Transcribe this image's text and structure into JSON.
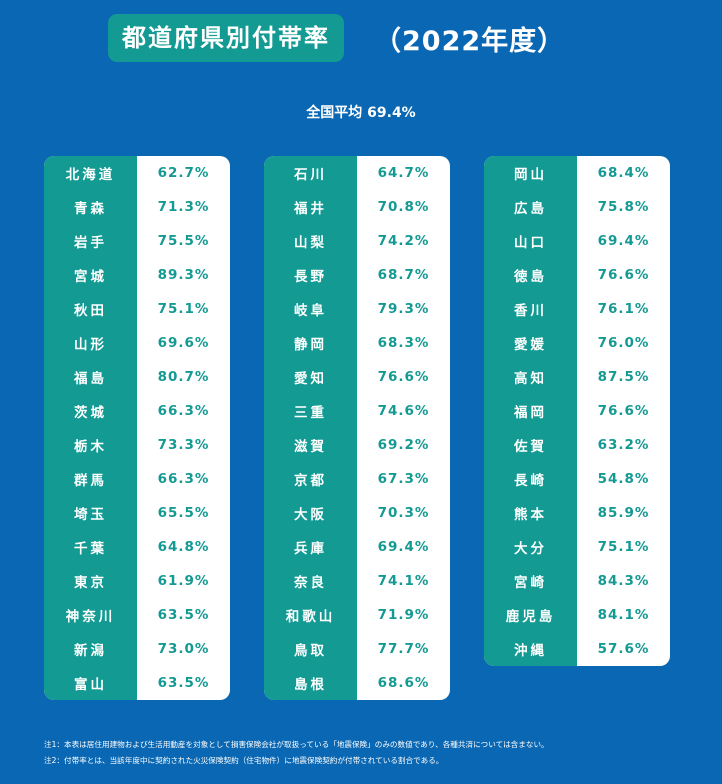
{
  "title": "都道府県別付帯率",
  "year_label": "（2022年度）",
  "national_average": "全国平均 69.4%",
  "colors": {
    "background": "#0a67b3",
    "accent": "#129a93",
    "value_text": "#149a93"
  },
  "chart_data": {
    "type": "table",
    "title": "都道府県別付帯率",
    "subtitle": "（2022年度）",
    "national_average": 69.4,
    "unit": "%",
    "columns": [
      [
        {
          "pref": "北海道",
          "rate": "62.7%",
          "value": 62.7
        },
        {
          "pref": "青森",
          "rate": "71.3%",
          "value": 71.3
        },
        {
          "pref": "岩手",
          "rate": "75.5%",
          "value": 75.5
        },
        {
          "pref": "宮城",
          "rate": "89.3%",
          "value": 89.3
        },
        {
          "pref": "秋田",
          "rate": "75.1%",
          "value": 75.1
        },
        {
          "pref": "山形",
          "rate": "69.6%",
          "value": 69.6
        },
        {
          "pref": "福島",
          "rate": "80.7%",
          "value": 80.7
        },
        {
          "pref": "茨城",
          "rate": "66.3%",
          "value": 66.3
        },
        {
          "pref": "栃木",
          "rate": "73.3%",
          "value": 73.3
        },
        {
          "pref": "群馬",
          "rate": "66.3%",
          "value": 66.3
        },
        {
          "pref": "埼玉",
          "rate": "65.5%",
          "value": 65.5
        },
        {
          "pref": "千葉",
          "rate": "64.8%",
          "value": 64.8
        },
        {
          "pref": "東京",
          "rate": "61.9%",
          "value": 61.9
        },
        {
          "pref": "神奈川",
          "rate": "63.5%",
          "value": 63.5
        },
        {
          "pref": "新潟",
          "rate": "73.0%",
          "value": 73.0
        },
        {
          "pref": "富山",
          "rate": "63.5%",
          "value": 63.5
        }
      ],
      [
        {
          "pref": "石川",
          "rate": "64.7%",
          "value": 64.7
        },
        {
          "pref": "福井",
          "rate": "70.8%",
          "value": 70.8
        },
        {
          "pref": "山梨",
          "rate": "74.2%",
          "value": 74.2
        },
        {
          "pref": "長野",
          "rate": "68.7%",
          "value": 68.7
        },
        {
          "pref": "岐阜",
          "rate": "79.3%",
          "value": 79.3
        },
        {
          "pref": "静岡",
          "rate": "68.3%",
          "value": 68.3
        },
        {
          "pref": "愛知",
          "rate": "76.6%",
          "value": 76.6
        },
        {
          "pref": "三重",
          "rate": "74.6%",
          "value": 74.6
        },
        {
          "pref": "滋賀",
          "rate": "69.2%",
          "value": 69.2
        },
        {
          "pref": "京都",
          "rate": "67.3%",
          "value": 67.3
        },
        {
          "pref": "大阪",
          "rate": "70.3%",
          "value": 70.3
        },
        {
          "pref": "兵庫",
          "rate": "69.4%",
          "value": 69.4
        },
        {
          "pref": "奈良",
          "rate": "74.1%",
          "value": 74.1
        },
        {
          "pref": "和歌山",
          "rate": "71.9%",
          "value": 71.9
        },
        {
          "pref": "鳥取",
          "rate": "77.7%",
          "value": 77.7
        },
        {
          "pref": "島根",
          "rate": "68.6%",
          "value": 68.6
        }
      ],
      [
        {
          "pref": "岡山",
          "rate": "68.4%",
          "value": 68.4
        },
        {
          "pref": "広島",
          "rate": "75.8%",
          "value": 75.8
        },
        {
          "pref": "山口",
          "rate": "69.4%",
          "value": 69.4
        },
        {
          "pref": "徳島",
          "rate": "76.6%",
          "value": 76.6
        },
        {
          "pref": "香川",
          "rate": "76.1%",
          "value": 76.1
        },
        {
          "pref": "愛媛",
          "rate": "76.0%",
          "value": 76.0
        },
        {
          "pref": "高知",
          "rate": "87.5%",
          "value": 87.5
        },
        {
          "pref": "福岡",
          "rate": "76.6%",
          "value": 76.6
        },
        {
          "pref": "佐賀",
          "rate": "63.2%",
          "value": 63.2
        },
        {
          "pref": "長崎",
          "rate": "54.8%",
          "value": 54.8
        },
        {
          "pref": "熊本",
          "rate": "85.9%",
          "value": 85.9
        },
        {
          "pref": "大分",
          "rate": "75.1%",
          "value": 75.1
        },
        {
          "pref": "宮崎",
          "rate": "84.3%",
          "value": 84.3
        },
        {
          "pref": "鹿児島",
          "rate": "84.1%",
          "value": 84.1
        },
        {
          "pref": "沖縄",
          "rate": "57.6%",
          "value": 57.6
        }
      ]
    ]
  },
  "notes": [
    "注1：本表は居住用建物および生活用動産を対象として損害保険会社が取扱っている「地震保険」のみの数値であり、各種共済については含まない。",
    "注2：付帯率とは、当該年度中に契約された火災保険契約（住宅物件）に地震保険契約が付帯されている割合である。"
  ]
}
